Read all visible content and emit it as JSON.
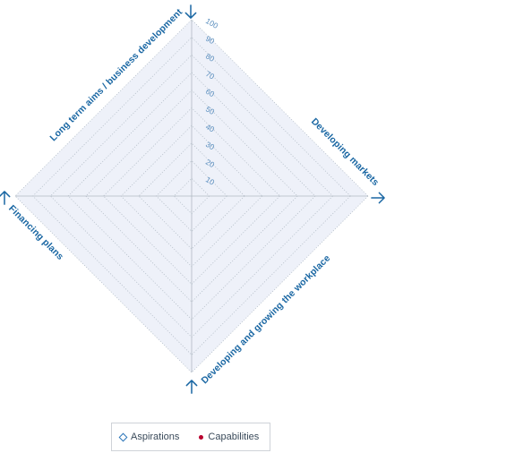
{
  "chart_data": {
    "type": "radar",
    "axes": [
      "Developing markets",
      "Developing and growing the workplace",
      "Financing plans",
      "Long term aims / business development"
    ],
    "ticks": [
      10,
      20,
      30,
      40,
      50,
      60,
      70,
      80,
      90,
      100
    ],
    "range": [
      0,
      100
    ],
    "series": [
      {
        "name": "Aspirations",
        "values": [],
        "color": "#2a74b8",
        "marker": "diamond"
      },
      {
        "name": "Capabilities",
        "values": [],
        "color": "#b8002e",
        "marker": "circle"
      }
    ],
    "grid": true,
    "grid_color": "#b9c2cc",
    "fill_color": "#eef1f9",
    "axis_label_color": "#1a67a3",
    "legend_position": "bottom"
  },
  "legend": {
    "items": [
      {
        "label": "Aspirations"
      },
      {
        "label": "Capabilities"
      }
    ]
  }
}
